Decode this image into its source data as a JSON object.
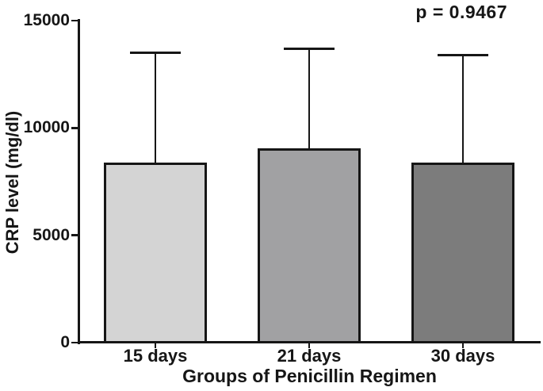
{
  "figure": {
    "background": "#ffffff",
    "text_color": "#161616"
  },
  "chart_data": {
    "type": "bar",
    "title": "",
    "xlabel": "Groups of Penicillin Regimen",
    "ylabel": "CRP level (mg/dl)",
    "categories": [
      "15 days",
      "21 days",
      "30 days"
    ],
    "values": [
      8400,
      9050,
      8400
    ],
    "error_bars": {
      "kind": "upper-only",
      "top_values": [
        13500,
        13700,
        13400
      ]
    },
    "ylim": [
      0,
      15000
    ],
    "yticks": [
      0,
      5000,
      10000,
      15000
    ],
    "ytick_labels": [
      "0",
      "5000",
      "10000",
      "15000"
    ],
    "bar_colors": [
      "#d4d4d4",
      "#a1a1a3",
      "#7c7c7c"
    ],
    "bar_border_color": "#161616",
    "annotation": "p = 0.9467",
    "annotation_position": "top-right",
    "grid": false,
    "legend": false
  }
}
